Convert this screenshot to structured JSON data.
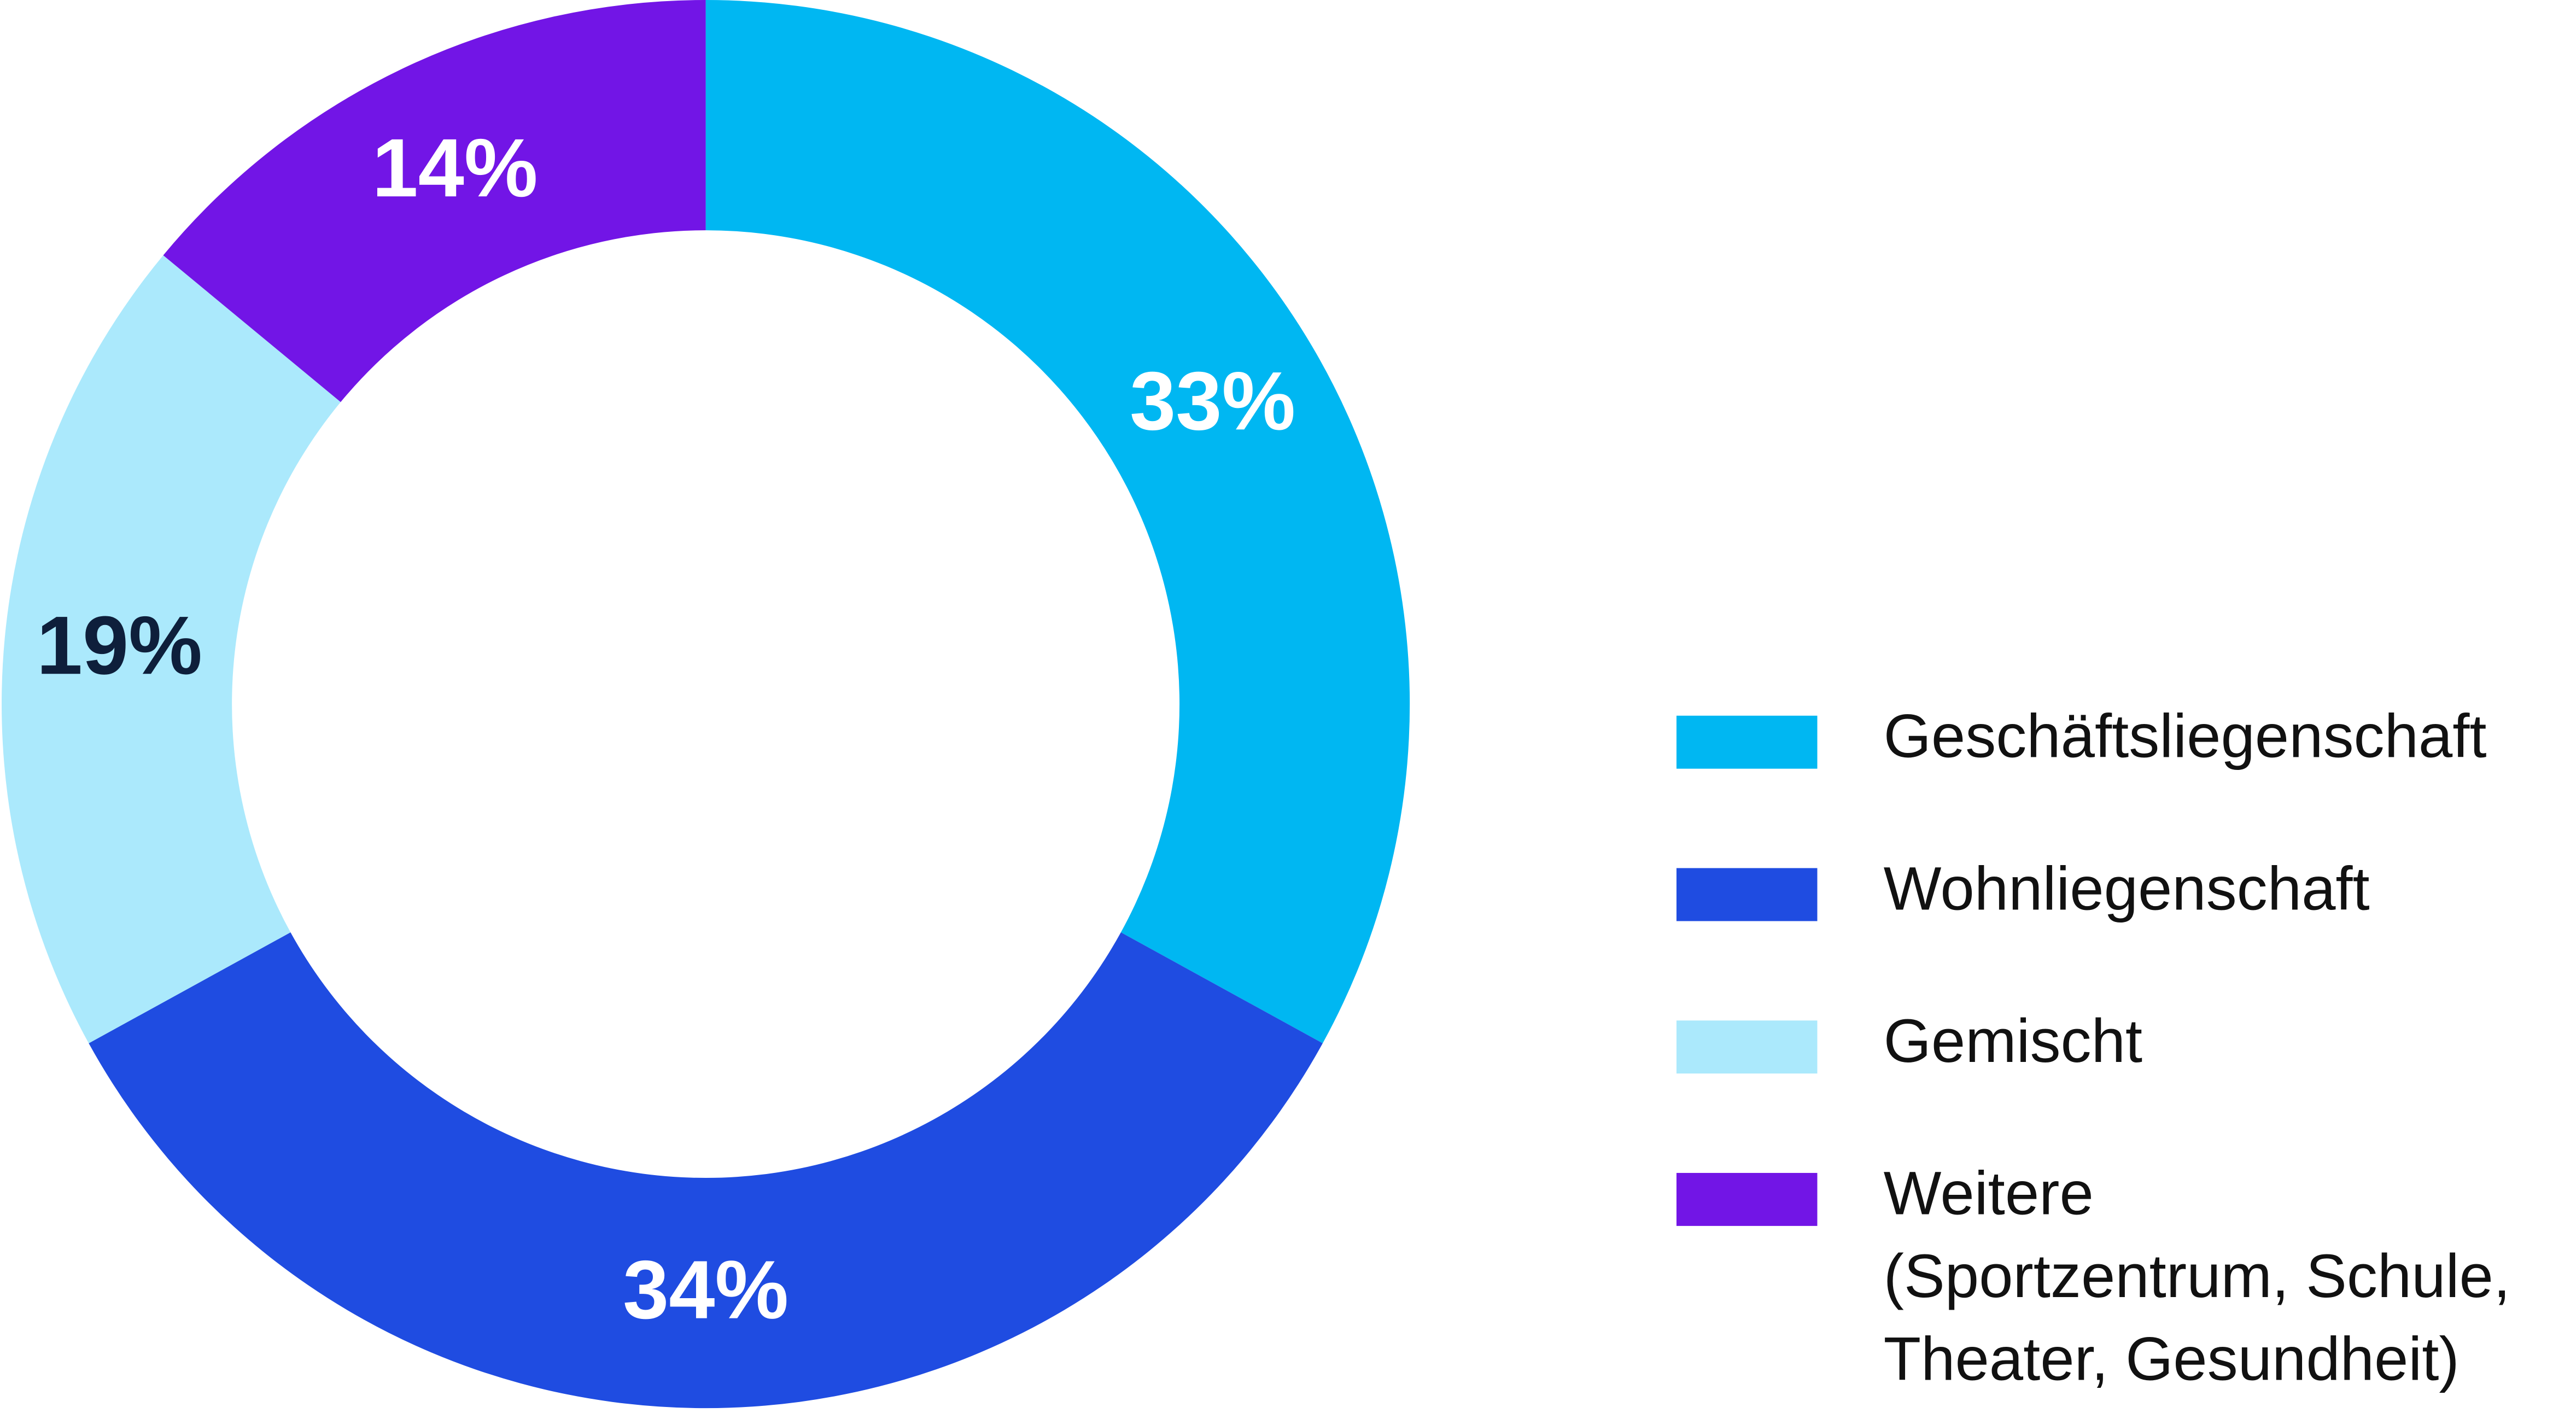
{
  "chart_data": {
    "type": "donut",
    "categories": [
      "Geschäftsliegenschaft",
      "Wohnliegenschaft",
      "Gemischt",
      "Weitere\n(Sportzentrum, Schule,\nTheater, Gesundheit)"
    ],
    "values": [
      33,
      34,
      19,
      14
    ],
    "value_labels": [
      "33%",
      "34%",
      "19%",
      "14%"
    ],
    "colors": [
      "#00b7f2",
      "#1f4ce1",
      "#abe9fc",
      "#7215e6"
    ],
    "label_colors": [
      "#ffffff",
      "#ffffff",
      "#0e1f3b",
      "#ffffff"
    ],
    "legend": "right"
  }
}
